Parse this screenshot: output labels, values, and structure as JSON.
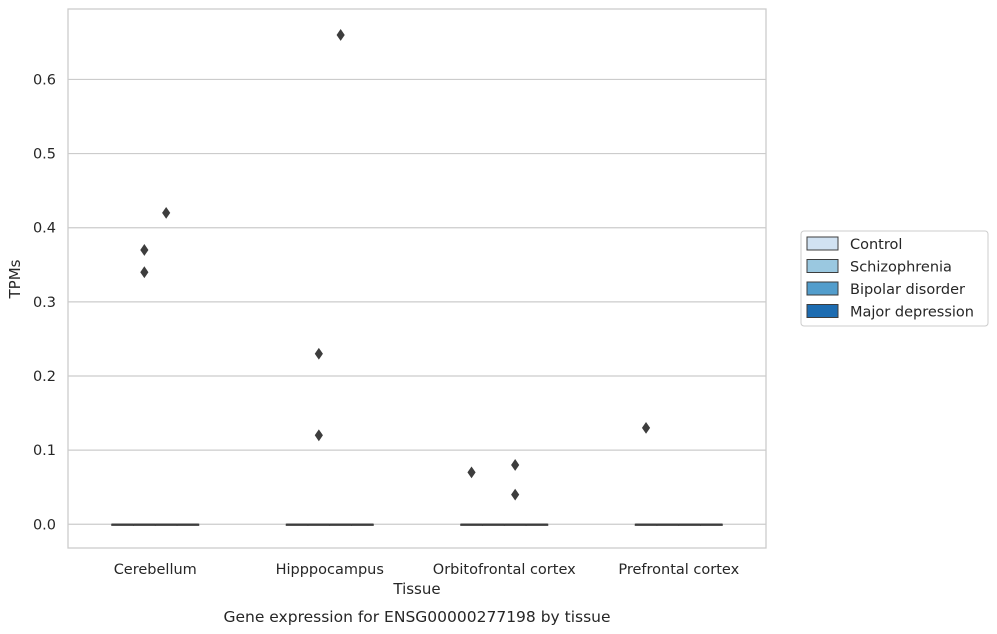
{
  "chart_data": {
    "type": "box",
    "title": "",
    "caption": "Gene expression for ENSG00000277198 by tissue",
    "xlabel": "Tissue",
    "ylabel": "TPMs",
    "ylim": [
      -0.032,
      0.695
    ],
    "yticks": [
      "0.0",
      "0.1",
      "0.2",
      "0.3",
      "0.4",
      "0.5",
      "0.6"
    ],
    "categories": [
      "Cerebellum",
      "Hipppocampus",
      "Orbitofrontal cortex",
      "Prefrontal cortex"
    ],
    "grid": "horizontal",
    "legend_position": "right",
    "series": [
      {
        "name": "Control",
        "color": "#d1e2f2"
      },
      {
        "name": "Schizophrenia",
        "color": "#9ac8e0"
      },
      {
        "name": "Bipolar disorder",
        "color": "#529dcc"
      },
      {
        "name": "Major depression",
        "color": "#1d6cb1"
      }
    ],
    "boxes": [
      {
        "category": "Cerebellum",
        "median": 0.0,
        "q1": 0.0,
        "q3": 0.0
      },
      {
        "category": "Hipppocampus",
        "median": 0.0,
        "q1": 0.0,
        "q3": 0.0
      },
      {
        "category": "Orbitofrontal cortex",
        "median": 0.0,
        "q1": 0.0,
        "q3": 0.0
      },
      {
        "category": "Prefrontal cortex",
        "median": 0.0,
        "q1": 0.0,
        "q3": 0.0
      }
    ],
    "outliers": [
      {
        "category": "Cerebellum",
        "series": "Schizophrenia",
        "y": 0.37
      },
      {
        "category": "Cerebellum",
        "series": "Schizophrenia",
        "y": 0.34
      },
      {
        "category": "Cerebellum",
        "series": "Bipolar disorder",
        "y": 0.42
      },
      {
        "category": "Hipppocampus",
        "series": "Schizophrenia",
        "y": 0.23
      },
      {
        "category": "Hipppocampus",
        "series": "Schizophrenia",
        "y": 0.12
      },
      {
        "category": "Hipppocampus",
        "series": "Bipolar disorder",
        "y": 0.66
      },
      {
        "category": "Orbitofrontal cortex",
        "series": "Control",
        "y": 0.07
      },
      {
        "category": "Orbitofrontal cortex",
        "series": "Bipolar disorder",
        "y": 0.08
      },
      {
        "category": "Orbitofrontal cortex",
        "series": "Bipolar disorder",
        "y": 0.04
      },
      {
        "category": "Prefrontal cortex",
        "series": "Control",
        "y": 0.13
      }
    ]
  }
}
